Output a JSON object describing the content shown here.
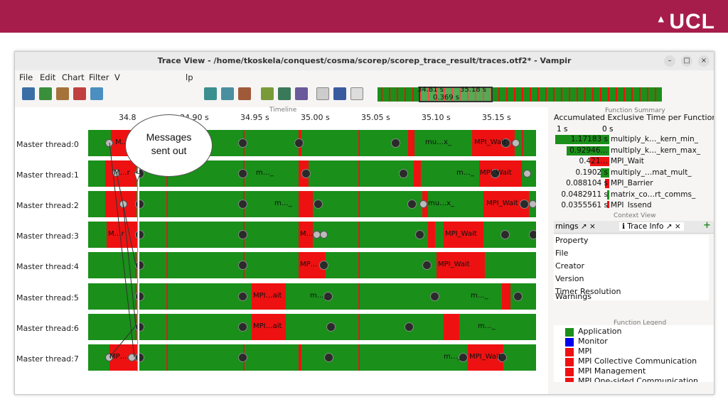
{
  "logo": {
    "text": "UCL"
  },
  "window": {
    "title": "Trace View - /home/tkoskela/conquest/cosma/scorep/scorep_trace_result/traces.otf2* - Vampir",
    "min_icon": "minimize-icon",
    "max_icon": "maximize-icon",
    "close_icon": "close-icon",
    "min_glyph": "–",
    "max_glyph": "□",
    "close_glyph": "×"
  },
  "menu": {
    "file": "File",
    "edit": "Edit",
    "chart": "Chart",
    "filter": "Filter",
    "v": "V",
    "help": "lp"
  },
  "toolbar": {
    "zoom_start": "34.81 s",
    "zoom_end": "35.18 s",
    "zoom_len": "0.369 s"
  },
  "callout": {
    "line1": "Messages",
    "line2": "sent out"
  },
  "timeline": {
    "title": "Timeline",
    "ticks": [
      "34.8",
      "34.90 s",
      "34.95 s",
      "35.00 s",
      "35.05 s",
      "35.10 s",
      "35.15 s"
    ],
    "rows": [
      {
        "label": "Master thread:0",
        "labels": [
          "M…r",
          "mu…x_",
          "MPI_Wait"
        ]
      },
      {
        "label": "Master thread:1",
        "labels": [
          "M…r",
          "m…_",
          "m…_",
          "MPI_Wait"
        ]
      },
      {
        "label": "Master thread:2",
        "labels": [
          "m…_",
          "mu…x_",
          "MPI_Wait"
        ]
      },
      {
        "label": "Master thread:3",
        "labels": [
          "M…r",
          "M…",
          "MPI_Wait"
        ]
      },
      {
        "label": "Master thread:4",
        "labels": [
          "MP…",
          "MPI_Wait"
        ]
      },
      {
        "label": "Master thread:5",
        "labels": [
          "MPI…ait",
          "m…_",
          "m…_"
        ]
      },
      {
        "label": "Master thread:6",
        "labels": [
          "MPI…ait",
          "m…_"
        ]
      },
      {
        "label": "Master thread:7",
        "labels": [
          "MP…",
          "m…_",
          "MPI_Wait"
        ]
      }
    ]
  },
  "function_summary": {
    "title": "Function Summary",
    "subtitle": "Accumulated Exclusive Time per Function",
    "axis": [
      "1 s",
      "0 s"
    ],
    "rows": [
      {
        "value": "1.17183 s",
        "name": "multiply_k…_kern_min_",
        "fraction": 1.0,
        "color": "#1a8f1a"
      },
      {
        "value": "0.92946…",
        "name": "multiply_k…_kern_max_",
        "fraction": 0.79,
        "color": "#1a8f1a"
      },
      {
        "value": "0.421…",
        "name": "MPI_Wait",
        "fraction": 0.36,
        "color": "#ee1111"
      },
      {
        "value": "0.1902 s",
        "name": "multiply_…mat_mult_",
        "fraction": 0.16,
        "color": "#1a8f1a"
      },
      {
        "value": "0.088104 s",
        "name": "MPI_Barrier",
        "fraction": 0.075,
        "color": "#ee1111"
      },
      {
        "value": "0.0482911 s",
        "name": "matrix_co…rt_comms_",
        "fraction": 0.041,
        "color": "#1a8f1a"
      },
      {
        "value": "0.0355561 s",
        "name": "MPI_Issend",
        "fraction": 0.03,
        "color": "#ee1111"
      }
    ]
  },
  "context_view": {
    "title": "Context View",
    "tab1": "rnings",
    "tab2": "Trace Info",
    "header": "Property",
    "items": [
      "File",
      "Creator",
      "Version",
      "Timer Resolution",
      "Warnings"
    ]
  },
  "legend": {
    "title": "Function Legend",
    "items": [
      {
        "name": "Application",
        "color": "#1a8f1a"
      },
      {
        "name": "Monitor",
        "color": "#0000ee"
      },
      {
        "name": "MPI",
        "color": "#ee1111"
      },
      {
        "name": "MPI Collective Communication",
        "color": "#ee1111"
      },
      {
        "name": "MPI Management",
        "color": "#ee1111"
      },
      {
        "name": "MPI One-sided Communication",
        "color": "#ee1111"
      }
    ]
  }
}
